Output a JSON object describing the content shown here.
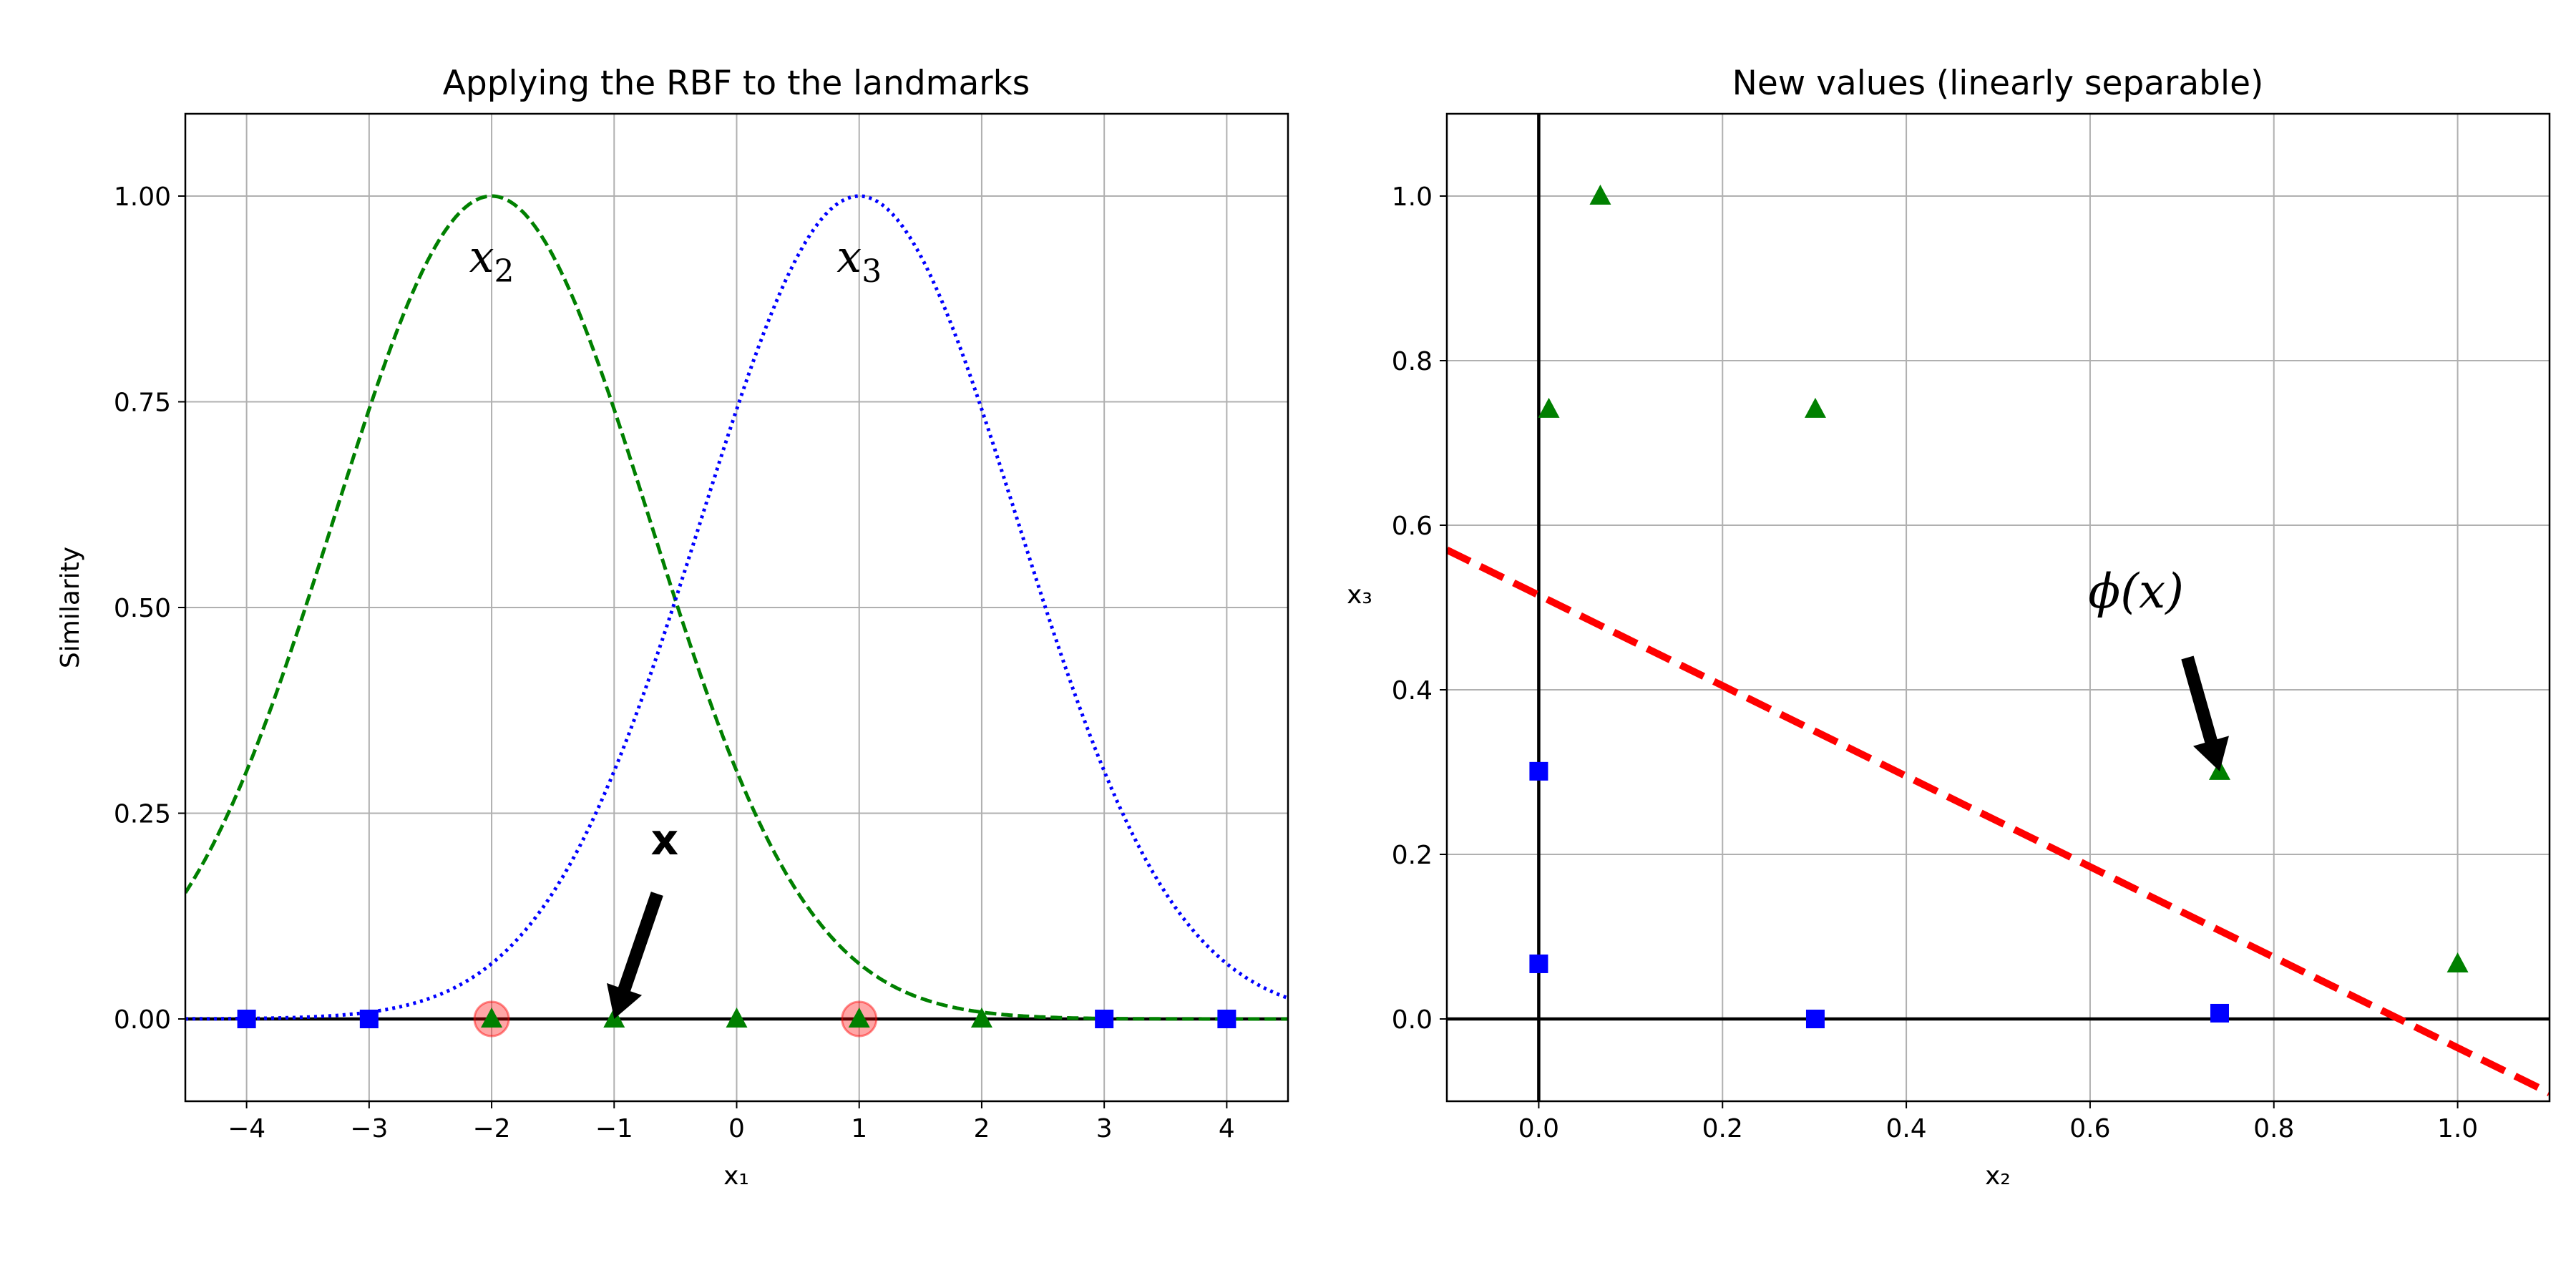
{
  "chart_data": [
    {
      "type": "line",
      "title": "Applying the RBF to the landmarks",
      "xlabel": "x₁",
      "ylabel": "Similarity",
      "xlim": [
        -4.5,
        4.5
      ],
      "ylim": [
        -0.1,
        1.1
      ],
      "grid": true,
      "xticks": [
        -4,
        -3,
        -2,
        -1,
        0,
        1,
        2,
        3,
        4
      ],
      "xtick_labels": [
        "−4",
        "−3",
        "−2",
        "−1",
        "0",
        "1",
        "2",
        "3",
        "4"
      ],
      "yticks": [
        0,
        0.25,
        0.5,
        0.75,
        1.0
      ],
      "ytick_labels": [
        "0.00",
        "0.25",
        "0.50",
        "0.75",
        "1.00"
      ],
      "gamma": 0.3,
      "series": [
        {
          "name": "x₂",
          "kind": "rbf",
          "landmark": -2,
          "style": "dashed",
          "color": "#008000"
        },
        {
          "name": "x₃",
          "kind": "rbf",
          "landmark": 1,
          "style": "dotted",
          "color": "#0000ff"
        }
      ],
      "points": {
        "blue_squares": {
          "color": "#0000ff",
          "x": [
            -4,
            -3,
            3,
            4
          ],
          "y": [
            0,
            0,
            0,
            0
          ]
        },
        "green_triangles": {
          "color": "#008000",
          "x": [
            -2,
            -1,
            0,
            1,
            2
          ],
          "y": [
            0,
            0,
            0,
            0,
            0
          ]
        },
        "landmarks": {
          "color": "#ff0000",
          "x": [
            -2,
            1
          ],
          "y": [
            0,
            0
          ]
        }
      },
      "curve_labels": [
        {
          "text": "x",
          "sub": "2",
          "x": -2,
          "y": 0.92
        },
        {
          "text": "x",
          "sub": "3",
          "x": 1,
          "y": 0.92
        }
      ],
      "annotation": {
        "text": "x",
        "point_x": -1,
        "point_y": 0,
        "text_x": -0.5,
        "text_y": 0.2
      }
    },
    {
      "type": "scatter",
      "title": "New values (linearly separable)",
      "xlabel": "x₂",
      "ylabel": "x₃",
      "xlim": [
        -0.1,
        1.1
      ],
      "ylim": [
        -0.1,
        1.1
      ],
      "grid": true,
      "xticks": [
        0,
        0.2,
        0.4,
        0.6,
        0.8,
        1.0
      ],
      "xtick_labels": [
        "0.0",
        "0.2",
        "0.4",
        "0.6",
        "0.8",
        "1.0"
      ],
      "yticks": [
        0,
        0.2,
        0.4,
        0.6,
        0.8,
        1.0
      ],
      "ytick_labels": [
        "0.0",
        "0.2",
        "0.4",
        "0.6",
        "0.8",
        "1.0"
      ],
      "points": {
        "blue_squares": {
          "color": "#0000ff",
          "x": [
            0.0,
            0.0,
            0.301,
            0.741
          ],
          "y": [
            0.301,
            0.067,
            0.0,
            0.007
          ]
        },
        "green_triangles": {
          "color": "#008000",
          "x": [
            1.0,
            0.741,
            0.301,
            0.067,
            0.011
          ],
          "y": [
            0.067,
            0.301,
            0.741,
            1.0,
            0.741
          ]
        }
      },
      "decision_line": {
        "color": "#ff0000",
        "style": "dashed",
        "x": [
          -0.1,
          1.1
        ],
        "y": [
          0.57,
          -0.09
        ]
      },
      "annotation": {
        "text": "ϕ(x)",
        "point_x": 0.741,
        "point_y": 0.301,
        "text_x": 0.65,
        "text_y": 0.5
      }
    }
  ]
}
